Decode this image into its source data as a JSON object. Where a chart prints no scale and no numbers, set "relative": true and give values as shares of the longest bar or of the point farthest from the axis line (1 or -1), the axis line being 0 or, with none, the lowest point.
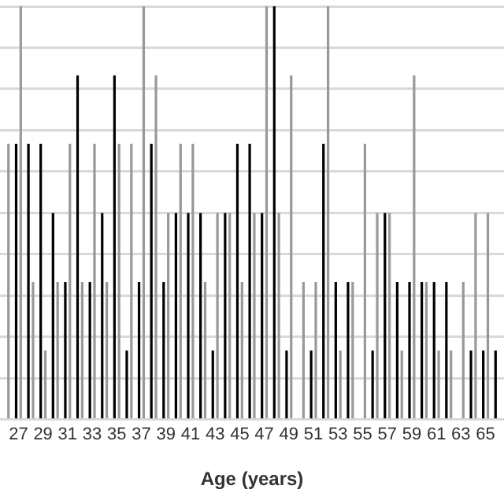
{
  "chart_data": {
    "type": "bar",
    "relative": true,
    "xlabel": "Age (years)",
    "grid": "y",
    "legend": false,
    "categories": [
      null,
      "27",
      null,
      "29",
      null,
      "31",
      null,
      "33",
      null,
      "35",
      null,
      "37",
      null,
      "39",
      null,
      "41",
      null,
      "43",
      null,
      "45",
      null,
      "47",
      null,
      "49",
      null,
      "51",
      null,
      "53",
      null,
      "55",
      null,
      "57",
      null,
      "59",
      null,
      "61",
      null,
      "63",
      null,
      "65",
      null
    ],
    "series": [
      {
        "color": "#000000",
        "values": [
          null,
          0.667,
          0.667,
          0.667,
          0.5,
          0.333,
          0.833,
          0.333,
          0.5,
          0.833,
          0.167,
          0.333,
          0.667,
          0.333,
          0.5,
          0.5,
          0.5,
          0.167,
          0.5,
          0.667,
          0.667,
          0.5,
          1,
          0.167,
          0,
          0.167,
          0.667,
          0.333,
          0.333,
          0,
          0.167,
          0.5,
          0.333,
          0.333,
          0.333,
          0.333,
          0.333,
          0,
          0.167,
          0.167,
          0.167
        ]
      },
      {
        "color": "#999999",
        "values": [
          0.667,
          1,
          0.333,
          0.167,
          0.333,
          0.667,
          0.333,
          0.667,
          0.333,
          0.667,
          0.667,
          1,
          0.833,
          0.5,
          0.667,
          0.667,
          0.333,
          0.5,
          0.5,
          0.333,
          0.5,
          1,
          0.5,
          0.833,
          0.333,
          0.333,
          1,
          0.167,
          0.333,
          0.667,
          0.5,
          0.5,
          0.167,
          0.833,
          0.333,
          0.167,
          0.167,
          0.333,
          0.5,
          0.5,
          null
        ]
      }
    ]
  }
}
